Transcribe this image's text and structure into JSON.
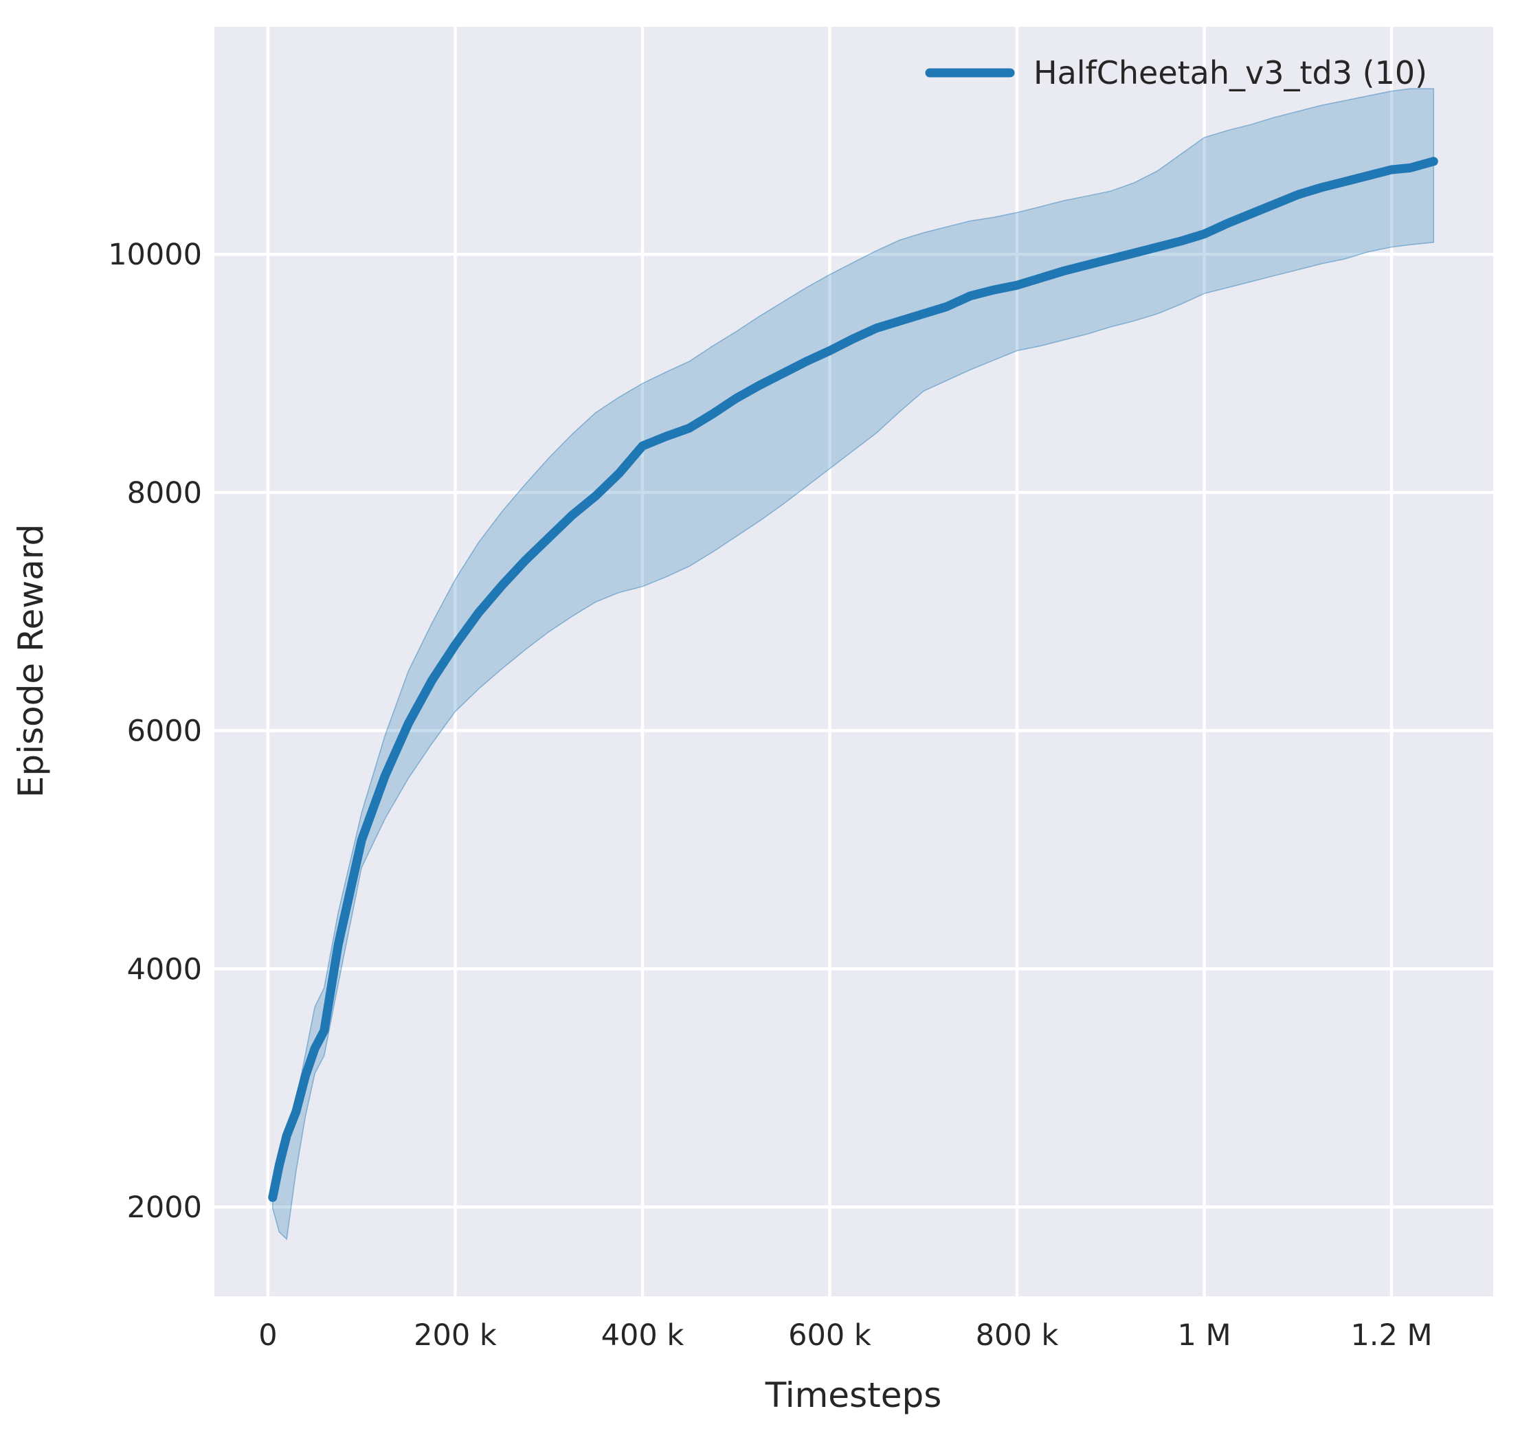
{
  "figure": {
    "background": "#ffffff",
    "plot_background": "#eaeaf2",
    "grid_color": "#ffffff",
    "text_color": "#262626"
  },
  "chart_data": {
    "type": "line",
    "title": "",
    "xlabel": "Timesteps",
    "ylabel": "Episode Reward",
    "grid": true,
    "legend_position": "upper right",
    "xlim": [
      -57200,
      1308600
    ],
    "ylim": [
      1250,
      11910
    ],
    "x_ticks": [
      {
        "t": 0,
        "label": "0"
      },
      {
        "t": 200000,
        "label": "200 k"
      },
      {
        "t": 400000,
        "label": "400 k"
      },
      {
        "t": 600000,
        "label": "600 k"
      },
      {
        "t": 800000,
        "label": "800 k"
      },
      {
        "t": 1000000,
        "label": "1 M"
      },
      {
        "t": 1200000,
        "label": "1.2 M"
      }
    ],
    "y_ticks": [
      {
        "v": 2000,
        "label": "2000"
      },
      {
        "v": 4000,
        "label": "4000"
      },
      {
        "v": 6000,
        "label": "6000"
      },
      {
        "v": 8000,
        "label": "8000"
      },
      {
        "v": 10000,
        "label": "10000"
      }
    ],
    "series": [
      {
        "name": "HalfCheetah_v3_td3 (10)",
        "color": "#1f77b4",
        "band_fill_opacity": 0.25,
        "band_edge_opacity": 0.45,
        "x": [
          5000,
          12000,
          20000,
          30000,
          40000,
          50000,
          60000,
          75000,
          100000,
          125000,
          150000,
          175000,
          200000,
          225000,
          250000,
          275000,
          300000,
          325000,
          350000,
          375000,
          400000,
          425000,
          450000,
          475000,
          500000,
          525000,
          550000,
          575000,
          600000,
          625000,
          650000,
          675000,
          700000,
          725000,
          750000,
          775000,
          800000,
          825000,
          850000,
          875000,
          900000,
          925000,
          950000,
          975000,
          1000000,
          1025000,
          1050000,
          1075000,
          1100000,
          1125000,
          1150000,
          1175000,
          1200000,
          1220000,
          1245000
        ],
        "mean": [
          2080,
          2350,
          2600,
          2800,
          3100,
          3330,
          3480,
          4200,
          5080,
          5620,
          6060,
          6420,
          6720,
          6990,
          7220,
          7430,
          7620,
          7810,
          7970,
          8160,
          8390,
          8470,
          8540,
          8660,
          8790,
          8900,
          9000,
          9100,
          9190,
          9290,
          9380,
          9440,
          9500,
          9560,
          9650,
          9700,
          9740,
          9800,
          9860,
          9910,
          9960,
          10010,
          10060,
          10110,
          10170,
          10260,
          10340,
          10420,
          10500,
          10560,
          10610,
          10660,
          10710,
          10725,
          10780
        ],
        "lower": [
          1990,
          1790,
          1730,
          2300,
          2760,
          3120,
          3270,
          3870,
          4850,
          5260,
          5600,
          5890,
          6160,
          6350,
          6520,
          6680,
          6830,
          6960,
          7080,
          7160,
          7210,
          7290,
          7380,
          7500,
          7630,
          7760,
          7900,
          8050,
          8200,
          8350,
          8500,
          8680,
          8850,
          8940,
          9030,
          9110,
          9190,
          9230,
          9280,
          9330,
          9390,
          9440,
          9500,
          9580,
          9670,
          9720,
          9770,
          9820,
          9870,
          9920,
          9960,
          10020,
          10060,
          10080,
          10100
        ],
        "upper": [
          2130,
          2320,
          2560,
          2890,
          3280,
          3680,
          3840,
          4470,
          5310,
          5960,
          6500,
          6900,
          7270,
          7580,
          7840,
          8070,
          8290,
          8490,
          8670,
          8800,
          8915,
          9010,
          9100,
          9230,
          9350,
          9480,
          9600,
          9720,
          9830,
          9930,
          10030,
          10120,
          10180,
          10230,
          10280,
          10310,
          10350,
          10400,
          10450,
          10490,
          10530,
          10600,
          10700,
          10840,
          10980,
          11040,
          11090,
          11150,
          11200,
          11250,
          11290,
          11330,
          11370,
          11390,
          11390
        ]
      }
    ]
  }
}
